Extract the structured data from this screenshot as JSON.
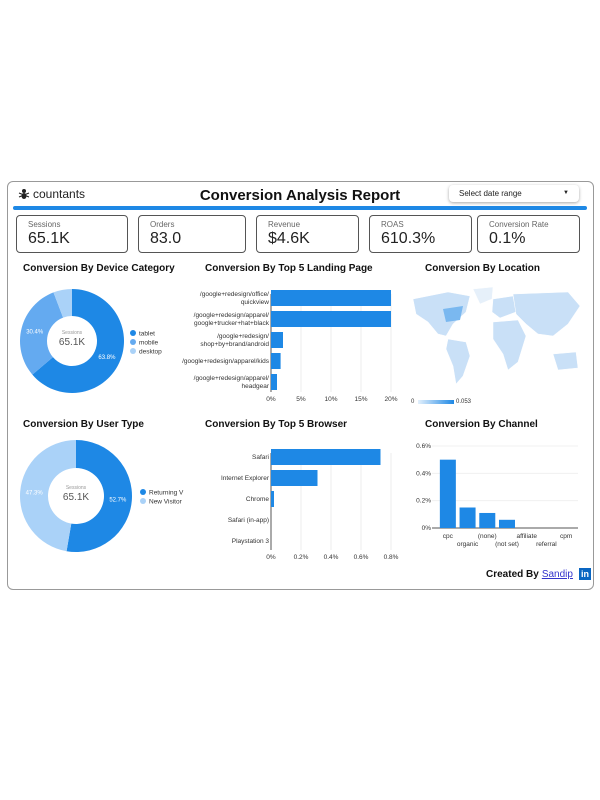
{
  "header": {
    "logo": "countants",
    "title": "Conversion Analysis Report",
    "date_range": "Select date range"
  },
  "kpis": [
    {
      "label": "Sessions",
      "value": "65.1K"
    },
    {
      "label": "Orders",
      "value": "83.0"
    },
    {
      "label": "Revenue",
      "value": "$4.6K"
    },
    {
      "label": "ROAS",
      "value": "610.3%"
    },
    {
      "label": "Conversion Rate",
      "value": "0.1%"
    }
  ],
  "sections": {
    "device": "Conversion By Device Category",
    "landing": "Conversion By Top 5 Landing Page",
    "location": "Conversion By Location",
    "user_type": "Conversion By User Type",
    "browser": "Conversion By Top 5 Browser",
    "channel": "Conversion By Channel"
  },
  "colors": {
    "accent": "#1e88e5",
    "mid": "#64aaf0",
    "light": "#aad2f8"
  },
  "chart_data": [
    {
      "type": "pie",
      "name": "device",
      "center_label": "Sessions",
      "center_value": "65.1K",
      "labels": [
        "tablet",
        "mobile",
        "desktop"
      ],
      "values": [
        63.8,
        30.4,
        5.8
      ],
      "value_labels": [
        "63.8%",
        "30.4%",
        ""
      ]
    },
    {
      "type": "bar",
      "name": "landing",
      "orientation": "horizontal",
      "categories": [
        [
          "/google+redesign/office/",
          "quickview"
        ],
        [
          "/google+redesign/apparel/",
          "google+trucker+hat+black"
        ],
        [
          "/google+redesign/",
          "shop+by+brand/android"
        ],
        [
          "/google+redesign/apparel/kids"
        ],
        [
          "/google+redesign/apparel/",
          "headgear"
        ]
      ],
      "values": [
        20,
        20,
        2,
        1.6,
        1
      ],
      "xlim": [
        0,
        20
      ],
      "ticks": [
        "0%",
        "5%",
        "10%",
        "15%",
        "20%"
      ]
    },
    {
      "type": "heatmap",
      "name": "location",
      "legend_min": "0",
      "legend_max": "0.053"
    },
    {
      "type": "pie",
      "name": "user_type",
      "center_label": "Sessions",
      "center_value": "65.1K",
      "labels": [
        "Returning V",
        "New Visitor"
      ],
      "values": [
        52.7,
        47.3
      ],
      "value_labels": [
        "52.7%",
        "47.3%"
      ]
    },
    {
      "type": "bar",
      "name": "browser",
      "orientation": "horizontal",
      "categories": [
        [
          "Safari"
        ],
        [
          "Internet Explorer"
        ],
        [
          "Chrome"
        ],
        [
          "Safari (in-app)"
        ],
        [
          "Playstation 3"
        ]
      ],
      "values": [
        0.73,
        0.31,
        0.02,
        0,
        0
      ],
      "xlim": [
        0,
        0.8
      ],
      "ticks": [
        "0%",
        "0.2%",
        "0.4%",
        "0.6%",
        "0.8%"
      ]
    },
    {
      "type": "bar",
      "name": "channel",
      "orientation": "vertical",
      "categories": [
        "cpc",
        "organic",
        "(none)",
        "(not set)",
        "affiliate",
        "referral",
        "cpm"
      ],
      "values": [
        0.5,
        0.15,
        0.11,
        0.06,
        0,
        0,
        0
      ],
      "ylim": [
        0,
        0.6
      ],
      "ticks": [
        "0%",
        "0.2%",
        "0.4%",
        "0.6%"
      ]
    }
  ],
  "footer": {
    "created_by": "Created By",
    "author": "Sandip",
    "linkedin": "in"
  }
}
